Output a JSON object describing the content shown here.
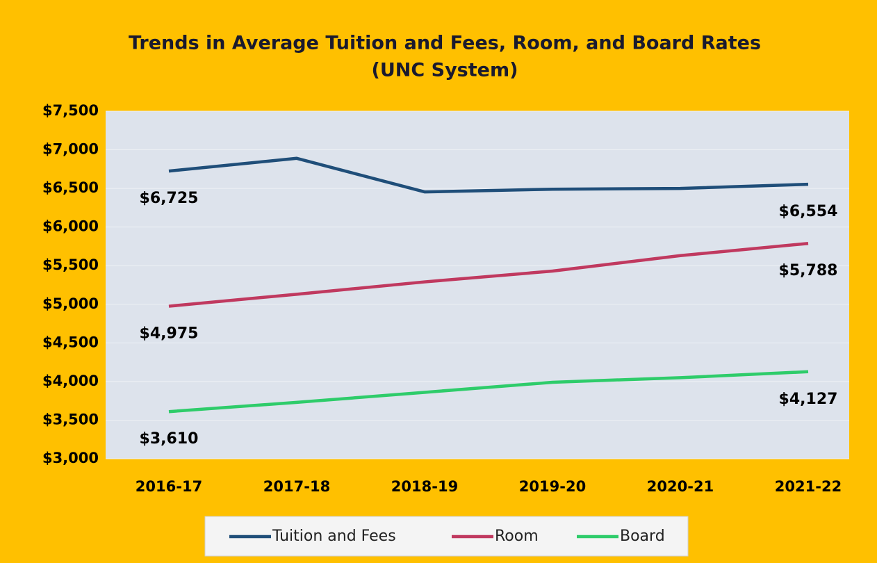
{
  "chart_data": {
    "type": "line",
    "title": "Trends in Average Tuition and Fees, Room, and Board Rates",
    "subtitle": "(UNC System)",
    "categories": [
      "2016-17",
      "2017-18",
      "2018-19",
      "2019-20",
      "2020-21",
      "2021-22"
    ],
    "series": [
      {
        "name": "Tuition and Fees",
        "color": "#1f4e79",
        "values": [
          6725,
          6890,
          6455,
          6490,
          6500,
          6554
        ],
        "value_labels": [
          "$6,725",
          null,
          null,
          null,
          null,
          "$6,554"
        ]
      },
      {
        "name": "Room",
        "color": "#c0395f",
        "values": [
          4975,
          5130,
          5290,
          5430,
          5630,
          5788
        ],
        "value_labels": [
          "$4,975",
          null,
          null,
          null,
          null,
          "$5,788"
        ]
      },
      {
        "name": "Board",
        "color": "#2ecc6a",
        "values": [
          3610,
          3730,
          3860,
          3990,
          4050,
          4127
        ],
        "value_labels": [
          "$3,610",
          null,
          null,
          null,
          null,
          "$4,127"
        ]
      }
    ],
    "ylim": [
      3000,
      7500
    ],
    "yticks": [
      {
        "value": 3000,
        "label": "$3,000"
      },
      {
        "value": 3500,
        "label": "$3,500"
      },
      {
        "value": 4000,
        "label": "$4,000"
      },
      {
        "value": 4500,
        "label": "$4,500"
      },
      {
        "value": 5000,
        "label": "$5,000"
      },
      {
        "value": 5500,
        "label": "$5,500"
      },
      {
        "value": 6000,
        "label": "$6,000"
      },
      {
        "value": 6500,
        "label": "$6,500"
      },
      {
        "value": 7000,
        "label": "$7,000"
      },
      {
        "value": 7500,
        "label": "$7,500"
      }
    ],
    "grid": true,
    "legend": "bottom"
  }
}
